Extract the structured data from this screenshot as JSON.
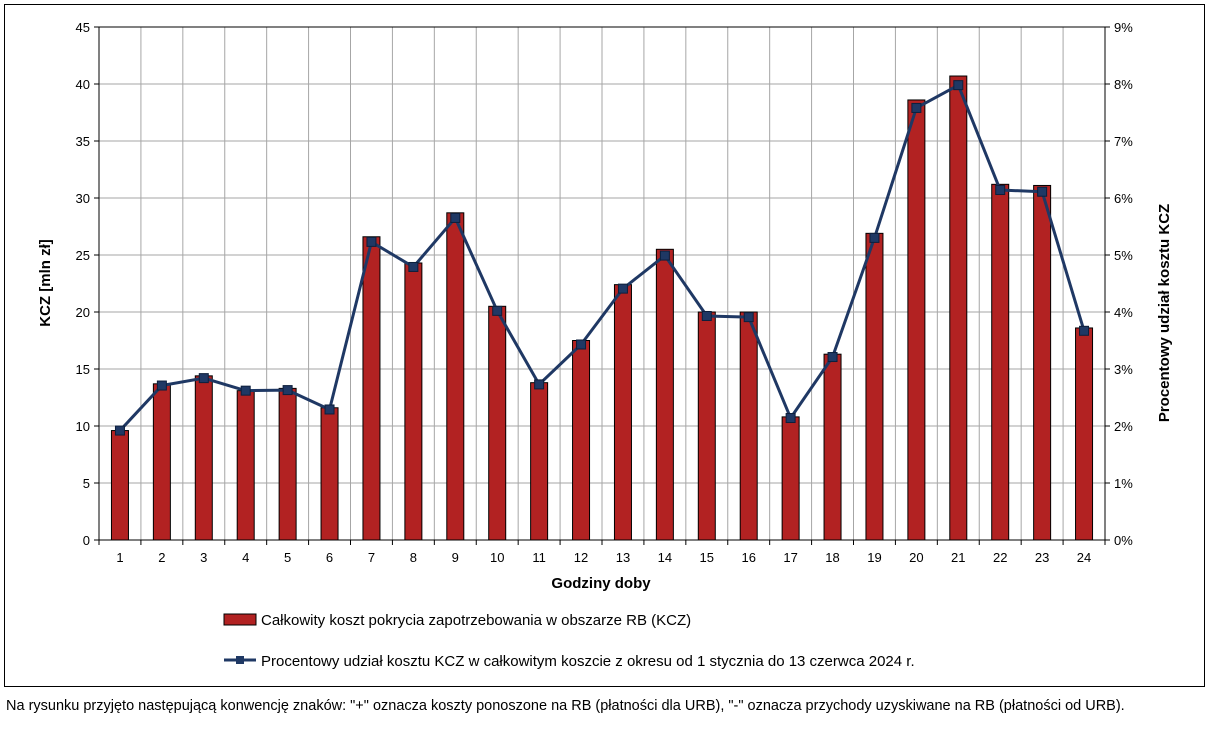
{
  "chart_data": {
    "type": "bar",
    "xlabel": "Godziny doby",
    "ylabel": "KCZ [mln zł]",
    "y2label": "Procentowy udział kosztu KCZ",
    "categories": [
      "1",
      "2",
      "3",
      "4",
      "5",
      "6",
      "7",
      "8",
      "9",
      "10",
      "11",
      "12",
      "13",
      "14",
      "15",
      "16",
      "17",
      "18",
      "19",
      "20",
      "21",
      "22",
      "23",
      "24"
    ],
    "ylim": [
      0,
      45
    ],
    "yticks": [
      0,
      5,
      10,
      15,
      20,
      25,
      30,
      35,
      40,
      45
    ],
    "y2lim": [
      0,
      9
    ],
    "y2ticks": [
      "0%",
      "1%",
      "2%",
      "3%",
      "4%",
      "5%",
      "6%",
      "7%",
      "8%",
      "9%"
    ],
    "grid": true,
    "legend_position": "bottom",
    "series": [
      {
        "name": "Całkowity koszt pokrycia zapotrzebowania w obszarze RB (KCZ)",
        "type": "bar",
        "axis": "left",
        "color": "#b22222",
        "values": [
          9.6,
          13.7,
          14.4,
          13.1,
          13.3,
          11.6,
          26.6,
          24.3,
          28.7,
          20.5,
          13.8,
          17.5,
          22.4,
          25.5,
          20.0,
          20.0,
          10.8,
          16.3,
          26.9,
          38.6,
          40.7,
          31.2,
          31.1,
          18.6
        ]
      },
      {
        "name": "Procentowy udział kosztu KCZ w całkowitym koszcie z okresu od 1 stycznia do 13 czerwca 2024 r.",
        "type": "line",
        "axis": "right",
        "color": "#1f3864",
        "values": [
          1.92,
          2.71,
          2.84,
          2.62,
          2.63,
          2.29,
          5.23,
          4.79,
          5.65,
          4.02,
          2.73,
          3.43,
          4.41,
          4.99,
          3.93,
          3.91,
          2.14,
          3.21,
          5.3,
          7.58,
          7.98,
          6.14,
          6.11,
          3.67
        ]
      }
    ]
  },
  "footnote": "Na rysunku przyjęto następującą konwencję znaków: \"+\" oznacza koszty ponoszone na RB (płatności dla URB), \"-\" oznacza przychody uzyskiwane na RB (płatności od URB)."
}
